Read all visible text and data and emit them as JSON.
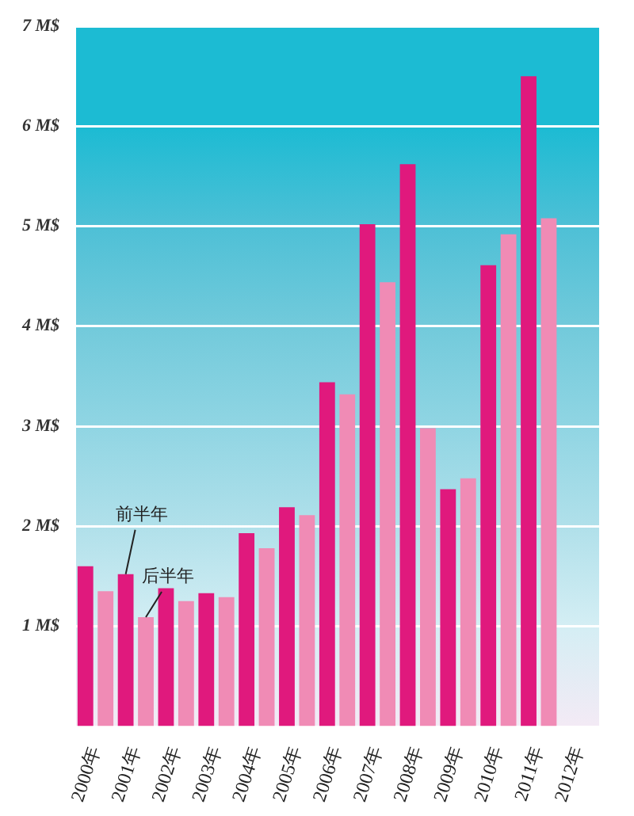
{
  "chart_data": {
    "type": "bar",
    "categories": [
      "2000年",
      "2001年",
      "2002年",
      "2003年",
      "2004年",
      "2005年",
      "2006年",
      "2007年",
      "2008年",
      "2009年",
      "2010年",
      "2011年",
      "2012年"
    ],
    "series": [
      {
        "color": "#e0197d",
        "values": [
          1.6,
          1.52,
          1.38,
          1.33,
          1.93,
          2.19,
          3.44,
          5.02,
          5.62,
          2.37,
          4.61,
          6.5,
          null
        ]
      },
      {
        "color": "#f08bb5",
        "values": [
          1.35,
          1.09,
          1.25,
          1.29,
          1.78,
          2.11,
          3.32,
          4.44,
          2.98,
          2.48,
          4.92,
          5.08,
          null
        ]
      }
    ],
    "ylim": [
      0,
      7
    ],
    "yticks": [
      {
        "value": 1,
        "label": "1 M$"
      },
      {
        "value": 2,
        "label": "2 M$"
      },
      {
        "value": 3,
        "label": "3 M$"
      },
      {
        "value": 4,
        "label": "4 M$"
      },
      {
        "value": 5,
        "label": "5 M$"
      },
      {
        "value": 6,
        "label": "6 M$"
      },
      {
        "value": 7,
        "label": "7 M$"
      }
    ],
    "grid": "y",
    "legend": false,
    "annotations": [
      {
        "text": "前半年",
        "x": "2001年",
        "y": 1.52
      },
      {
        "text": "后半年",
        "x": "2001年",
        "y": 1.09
      }
    ]
  }
}
